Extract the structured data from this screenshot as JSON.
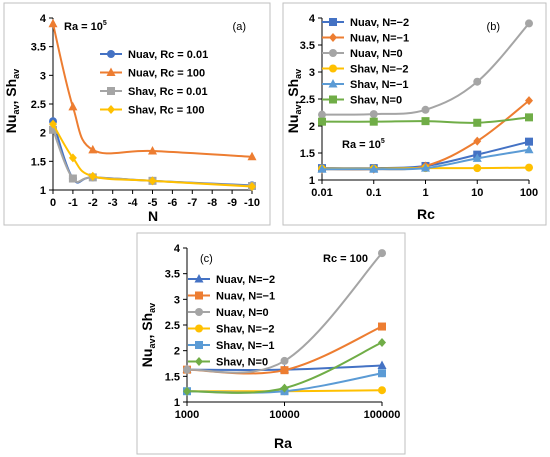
{
  "chart_data": [
    {
      "type": "line",
      "panel_label": "(a)",
      "annotation": {
        "base": "Ra = 10",
        "exp": "5"
      },
      "xlabel": "N",
      "ylabel": {
        "a": "Nu",
        "a_sub": "av",
        "sep": ", Sh",
        "b_sub": "av"
      },
      "x_reversed": true,
      "xlim": [
        0,
        -10
      ],
      "ylim": [
        1,
        4
      ],
      "x_ticks": [
        0,
        -1,
        -2,
        -3,
        -4,
        -5,
        -6,
        -7,
        -8,
        -9,
        -10
      ],
      "y_ticks": [
        1,
        1.5,
        2,
        2.5,
        3,
        3.5,
        4
      ],
      "tick_labels_x": [
        "0",
        "-1",
        "-2",
        "-3",
        "-4",
        "-5",
        "-6",
        "-7",
        "-8",
        "-9",
        "-10"
      ],
      "tick_labels_y": [
        "1",
        "1.5",
        "2",
        "2.5",
        "3",
        "3.5",
        "4"
      ],
      "legend_position": "upper-right",
      "grid": false,
      "series": [
        {
          "name": "Nuav, Rc = 0.01",
          "color": "#4472c4",
          "marker": "circle",
          "x": [
            0,
            -1,
            -2,
            -5,
            -10
          ],
          "y": [
            2.2,
            1.2,
            1.22,
            1.16,
            1.08
          ]
        },
        {
          "name": "Nuav, Rc = 100",
          "color": "#ed7d31",
          "marker": "triangle",
          "x": [
            0,
            -1,
            -2,
            -5,
            -10
          ],
          "y": [
            3.9,
            2.45,
            1.7,
            1.68,
            1.58
          ]
        },
        {
          "name": "Shav, Rc = 0.01",
          "color": "#a5a5a5",
          "marker": "square",
          "x": [
            0,
            -1,
            -2,
            -5,
            -10
          ],
          "y": [
            2.05,
            1.2,
            1.22,
            1.16,
            1.07
          ]
        },
        {
          "name": "Shav, Rc = 100",
          "color": "#ffc000",
          "marker": "diamond",
          "x": [
            0,
            -1,
            -2,
            -5,
            -10
          ],
          "y": [
            2.15,
            1.56,
            1.24,
            1.16,
            1.06
          ]
        }
      ]
    },
    {
      "type": "line",
      "panel_label": "(b)",
      "annotation": {
        "base": "Ra = 10",
        "exp": "5"
      },
      "xlabel": "Rc",
      "ylabel": {
        "a": "Nu",
        "a_sub": "av",
        "sep": ", Sh",
        "b_sub": "av"
      },
      "x_scale": "log",
      "xlim": [
        0.01,
        100
      ],
      "ylim": [
        1,
        4
      ],
      "x_ticks": [
        0.01,
        0.1,
        1,
        10,
        100
      ],
      "y_ticks": [
        1,
        1.5,
        2,
        2.5,
        3,
        3.5,
        4
      ],
      "tick_labels_x": [
        "0.01",
        "0.1",
        "1",
        "10",
        "100"
      ],
      "tick_labels_y": [
        "1",
        "1.5",
        "2",
        "2.5",
        "3",
        "3.5",
        "4"
      ],
      "legend_position": "upper-left",
      "grid": false,
      "series": [
        {
          "name": "Nuav, N=−2",
          "color": "#4472c4",
          "marker": "square",
          "x": [
            0.01,
            0.1,
            1,
            10,
            100
          ],
          "y": [
            1.22,
            1.22,
            1.26,
            1.47,
            1.71
          ]
        },
        {
          "name": "Nuav, N=−1",
          "color": "#ed7d31",
          "marker": "diamond",
          "x": [
            0.01,
            0.1,
            1,
            10,
            100
          ],
          "y": [
            1.2,
            1.2,
            1.26,
            1.72,
            2.47
          ]
        },
        {
          "name": "Nuav, N=0",
          "color": "#a5a5a5",
          "marker": "circle",
          "x": [
            0.01,
            0.1,
            1,
            10,
            100
          ],
          "y": [
            2.21,
            2.22,
            2.3,
            2.82,
            3.9
          ]
        },
        {
          "name": "Shav, N=−2",
          "color": "#ffc000",
          "marker": "circle",
          "x": [
            0.01,
            0.1,
            1,
            10,
            100
          ],
          "y": [
            1.21,
            1.21,
            1.22,
            1.22,
            1.23
          ]
        },
        {
          "name": "Shav, N=−1",
          "color": "#5b9bd5",
          "marker": "triangle",
          "x": [
            0.01,
            0.1,
            1,
            10,
            100
          ],
          "y": [
            1.2,
            1.2,
            1.22,
            1.4,
            1.56
          ]
        },
        {
          "name": "Shav, N=0",
          "color": "#70ad47",
          "marker": "square",
          "x": [
            0.01,
            0.1,
            1,
            10,
            100
          ],
          "y": [
            2.08,
            2.08,
            2.09,
            2.06,
            2.16
          ]
        }
      ]
    },
    {
      "type": "line",
      "panel_label": "(c)",
      "annotation": {
        "base": "Rc = 100",
        "exp": ""
      },
      "xlabel": "Ra",
      "ylabel": {
        "a": "Nu",
        "a_sub": "av",
        "sep": ", Sh",
        "b_sub": "av"
      },
      "x_scale": "log",
      "xlim": [
        1000,
        100000
      ],
      "ylim": [
        1,
        4
      ],
      "x_ticks": [
        1000,
        10000,
        100000
      ],
      "y_ticks": [
        1,
        1.5,
        2,
        2.5,
        3,
        3.5,
        4
      ],
      "tick_labels_x": [
        "1000",
        "10000",
        "100000"
      ],
      "tick_labels_y": [
        "1",
        "1.5",
        "2",
        "2.5",
        "3",
        "3.5",
        "4"
      ],
      "legend_position": "upper-left",
      "grid": false,
      "series": [
        {
          "name": "Nuav, N=−2",
          "color": "#4472c4",
          "marker": "triangle",
          "x": [
            1000,
            10000,
            100000
          ],
          "y": [
            1.63,
            1.63,
            1.71
          ]
        },
        {
          "name": "Nuav, N=−1",
          "color": "#ed7d31",
          "marker": "square",
          "x": [
            1000,
            10000,
            100000
          ],
          "y": [
            1.63,
            1.62,
            2.47
          ]
        },
        {
          "name": "Nuav, N=0",
          "color": "#a5a5a5",
          "marker": "circle",
          "x": [
            1000,
            10000,
            100000
          ],
          "y": [
            1.63,
            1.8,
            3.9
          ]
        },
        {
          "name": "Shav, N=−2",
          "color": "#ffc000",
          "marker": "circle",
          "x": [
            1000,
            10000,
            100000
          ],
          "y": [
            1.21,
            1.21,
            1.23
          ]
        },
        {
          "name": "Shav, N=−1",
          "color": "#5b9bd5",
          "marker": "square",
          "x": [
            1000,
            10000,
            100000
          ],
          "y": [
            1.21,
            1.21,
            1.56
          ]
        },
        {
          "name": "Shav, N=0",
          "color": "#70ad47",
          "marker": "diamond",
          "x": [
            1000,
            10000,
            100000
          ],
          "y": [
            1.21,
            1.27,
            2.16
          ]
        }
      ]
    }
  ]
}
